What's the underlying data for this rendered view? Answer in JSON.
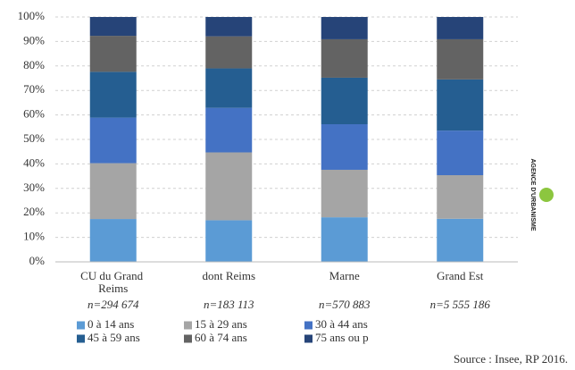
{
  "chart_data": {
    "type": "stacked_bar",
    "categories": [
      "CU du Grand Reims",
      "dont Reims",
      "Marne",
      "Grand Est"
    ],
    "sample_sizes": [
      "n=294 674",
      "n=183 113",
      "n=570 883",
      "n=5 555 186"
    ],
    "series": [
      {
        "name": "0 à 14 ans",
        "color": "#5b9bd5",
        "values": [
          17.5,
          17.0,
          18.2,
          17.6
        ]
      },
      {
        "name": "15 à 29 ans",
        "color": "#a5a5a5",
        "values": [
          22.8,
          27.7,
          19.4,
          17.8
        ]
      },
      {
        "name": "30 à 44 ans",
        "color": "#4472c4",
        "values": [
          18.6,
          18.2,
          18.6,
          18.2
        ]
      },
      {
        "name": "45 à 59 ans",
        "color": "#255e91",
        "values": [
          18.7,
          16.1,
          19.0,
          20.9
        ]
      },
      {
        "name": "60 à 74 ans",
        "color": "#636363",
        "values": [
          14.7,
          13.1,
          15.7,
          16.4
        ]
      },
      {
        "name": "75 ans ou p",
        "color": "#264478",
        "values": [
          7.7,
          7.9,
          9.1,
          9.1
        ]
      }
    ],
    "ylim": [
      0,
      100
    ],
    "yticks": [
      {
        "value": 0,
        "label": "0%"
      },
      {
        "value": 10,
        "label": "10%"
      },
      {
        "value": 20,
        "label": "20%"
      },
      {
        "value": 30,
        "label": "30%"
      },
      {
        "value": 40,
        "label": "40%"
      },
      {
        "value": 50,
        "label": "50%"
      },
      {
        "value": 60,
        "label": "60%"
      },
      {
        "value": 70,
        "label": "70%"
      },
      {
        "value": 80,
        "label": "80%"
      },
      {
        "value": 90,
        "label": "90%"
      },
      {
        "value": 100,
        "label": "100%"
      }
    ],
    "grid": true,
    "source": "Source : Insee, RP 2016.",
    "logo": "AGENCE D'URBANISME"
  }
}
